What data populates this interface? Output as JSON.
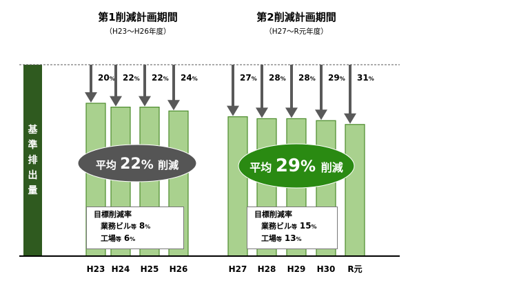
{
  "chart_data": {
    "type": "bar",
    "ylabel": "基準排出量",
    "categories": [
      "H23",
      "H24",
      "H25",
      "H26",
      "H27",
      "H28",
      "H29",
      "H30",
      "R元"
    ],
    "reduction_pct": [
      20,
      22,
      22,
      24,
      27,
      28,
      28,
      29,
      31
    ],
    "reduction_unit": "%",
    "phases": [
      {
        "title": "第1削減計画期間",
        "subtitle": "（H23～H26年度）",
        "average_prefix": "平均",
        "average_value": "22",
        "average_unit": "%",
        "average_suffix": "削減",
        "average_color": "#555555",
        "target_title": "目標削減率",
        "targets": [
          {
            "label": "業務ビル",
            "small": "等",
            "value": "8",
            "unit": "%"
          },
          {
            "label": "工場",
            "small": "等",
            "value": "6",
            "unit": "%"
          }
        ]
      },
      {
        "title": "第2削減計画期間",
        "subtitle": "（H27～R元年度）",
        "average_prefix": "平均",
        "average_value": "29",
        "average_unit": "%",
        "average_suffix": "削減",
        "average_color": "#2a8a12",
        "target_title": "目標削減率",
        "targets": [
          {
            "label": "業務ビル",
            "small": "等",
            "value": "15",
            "unit": "%"
          },
          {
            "label": "工場",
            "small": "等",
            "value": "13",
            "unit": "%"
          }
        ]
      }
    ],
    "colors": {
      "bar_fill": "#a9d18e",
      "bar_stroke": "#4a8a2a",
      "arrow": "#595959",
      "axis": "#000000",
      "baseline_dash": "#555555"
    }
  }
}
